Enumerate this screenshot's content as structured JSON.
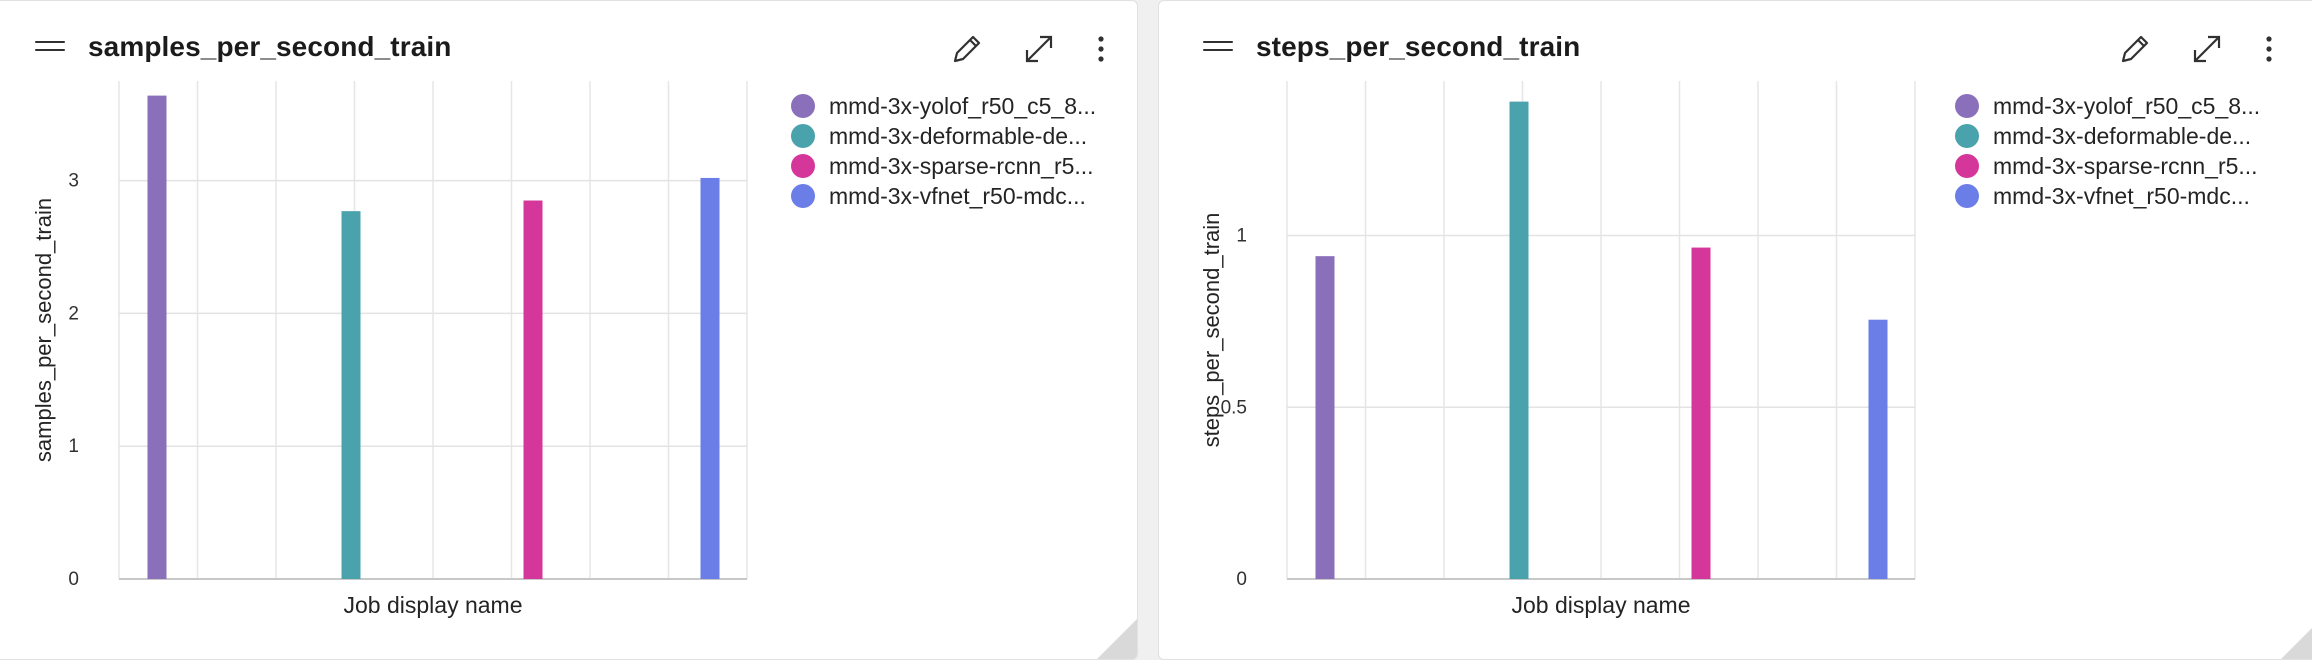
{
  "panels": [
    {
      "title": "samples_per_second_train",
      "legend": [
        {
          "label": "mmd-3x-yolof_r50_c5_8...",
          "color": "#8a6fbb"
        },
        {
          "label": "mmd-3x-deformable-de...",
          "color": "#4aa3ac"
        },
        {
          "label": "mmd-3x-sparse-rcnn_r5...",
          "color": "#d5369a"
        },
        {
          "label": "mmd-3x-vfnet_r50-mdc...",
          "color": "#6b7ee8"
        }
      ],
      "chart_data": {
        "type": "bar",
        "xlabel": "Job display name",
        "ylabel": "samples_per_second_train",
        "ylim": [
          0,
          3.75
        ],
        "yticks": [
          0,
          1,
          2,
          3
        ],
        "ytick_labels": [
          "0",
          "1",
          "2",
          "3"
        ],
        "grid": true,
        "values": [
          3.64,
          2.77,
          2.85,
          3.02
        ]
      }
    },
    {
      "title": "steps_per_second_train",
      "legend": [
        {
          "label": "mmd-3x-yolof_r50_c5_8...",
          "color": "#8a6fbb"
        },
        {
          "label": "mmd-3x-deformable-de...",
          "color": "#4aa3ac"
        },
        {
          "label": "mmd-3x-sparse-rcnn_r5...",
          "color": "#d5369a"
        },
        {
          "label": "mmd-3x-vfnet_r50-mdc...",
          "color": "#6b7ee8"
        }
      ],
      "chart_data": {
        "type": "bar",
        "xlabel": "Job display name",
        "ylabel": "steps_per_second_train",
        "ylim": [
          0,
          1.45
        ],
        "yticks": [
          0,
          0.5,
          1
        ],
        "ytick_labels": [
          "0",
          "0.5",
          "1"
        ],
        "grid": true,
        "values": [
          0.94,
          1.39,
          0.965,
          0.755
        ]
      }
    }
  ],
  "icons": {
    "edit": "pencil-icon",
    "expand": "expand-icon",
    "more": "more-vertical-icon",
    "drag": "drag-handle-icon"
  }
}
